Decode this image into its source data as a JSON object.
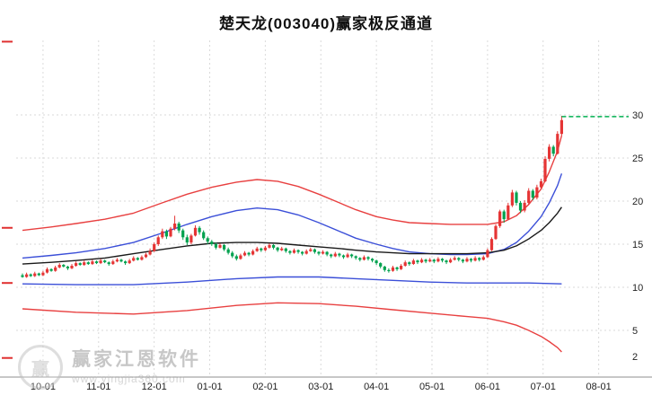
{
  "window": {
    "title": "楚天龙(003040)赢家极反通道"
  },
  "watermark": {
    "brand": "赢家江恩软件",
    "url": "www.yingjia360.com",
    "logo_text": "赢"
  },
  "chart_data": {
    "type": "candlestick",
    "title": "楚天龙(003040)赢家极反通道",
    "legend_position": "none",
    "grid": true,
    "y_axis": {
      "side": "right",
      "ylim": [
        0,
        38
      ],
      "grid_levels": [
        30,
        25,
        20,
        15,
        10,
        5
      ],
      "tick_labels": [
        30,
        25,
        20,
        15,
        10,
        5,
        2
      ]
    },
    "x_axis": {
      "ticks": [
        {
          "label": "10-01",
          "i": 5
        },
        {
          "label": "11-01",
          "i": 18.5
        },
        {
          "label": "12-01",
          "i": 32
        },
        {
          "label": "01-01",
          "i": 45.5
        },
        {
          "label": "02-01",
          "i": 59
        },
        {
          "label": "03-01",
          "i": 72.5
        },
        {
          "label": "04-01",
          "i": 86
        },
        {
          "label": "05-01",
          "i": 99.5
        },
        {
          "label": "06-01",
          "i": 113
        },
        {
          "label": "07-01",
          "i": 126.5
        },
        {
          "label": "08-01",
          "i": 140
        }
      ]
    },
    "left_marks": [
      38.5,
      16.9,
      10.5,
      1.8
    ],
    "colors": {
      "up": "#e53535",
      "down": "#00a14e",
      "band_red": "#e84040",
      "band_blue": "#3b4fd8",
      "band_black": "#1a1a1a",
      "ceiling": "#00b050",
      "grid": "#dadada"
    },
    "candles": [
      [
        11.4,
        11.6,
        11.1,
        11.2
      ],
      [
        11.2,
        11.7,
        11.1,
        11.5
      ],
      [
        11.5,
        11.6,
        11.2,
        11.3
      ],
      [
        11.3,
        11.8,
        11.2,
        11.6
      ],
      [
        11.6,
        11.7,
        11.3,
        11.4
      ],
      [
        11.4,
        11.9,
        11.3,
        11.7
      ],
      [
        11.7,
        12.3,
        11.6,
        12.1
      ],
      [
        12.1,
        12.2,
        11.8,
        11.9
      ],
      [
        11.9,
        12.5,
        11.8,
        12.3
      ],
      [
        12.3,
        12.8,
        12.2,
        12.6
      ],
      [
        12.6,
        12.7,
        12.3,
        12.4
      ],
      [
        12.4,
        12.5,
        12.0,
        12.2
      ],
      [
        12.2,
        12.7,
        12.1,
        12.5
      ],
      [
        12.5,
        13.0,
        12.4,
        12.8
      ],
      [
        12.8,
        12.9,
        12.5,
        12.6
      ],
      [
        12.6,
        13.1,
        12.5,
        12.9
      ],
      [
        12.9,
        13.0,
        12.6,
        12.7
      ],
      [
        12.7,
        13.2,
        12.6,
        13.0
      ],
      [
        13.0,
        13.1,
        12.7,
        12.8
      ],
      [
        12.8,
        13.3,
        12.7,
        13.1
      ],
      [
        13.1,
        13.2,
        12.8,
        12.9
      ],
      [
        12.9,
        13.0,
        12.5,
        12.7
      ],
      [
        12.7,
        13.2,
        12.6,
        13.0
      ],
      [
        13.0,
        13.4,
        12.9,
        13.2
      ],
      [
        13.2,
        13.3,
        12.9,
        13.0
      ],
      [
        13.0,
        13.1,
        12.6,
        12.8
      ],
      [
        12.8,
        13.3,
        12.7,
        13.1
      ],
      [
        13.1,
        13.6,
        13.0,
        13.4
      ],
      [
        13.4,
        13.5,
        13.1,
        13.2
      ],
      [
        13.2,
        13.7,
        13.1,
        13.5
      ],
      [
        13.5,
        14.0,
        13.4,
        13.8
      ],
      [
        13.8,
        14.5,
        13.7,
        14.2
      ],
      [
        14.2,
        15.2,
        14.1,
        15.0
      ],
      [
        15.0,
        16.0,
        14.8,
        15.8
      ],
      [
        15.8,
        16.8,
        15.6,
        16.5
      ],
      [
        16.5,
        16.7,
        15.6,
        15.9
      ],
      [
        15.9,
        17.0,
        15.8,
        16.8
      ],
      [
        16.8,
        18.3,
        16.6,
        17.4
      ],
      [
        17.4,
        17.6,
        16.3,
        16.6
      ],
      [
        16.6,
        16.8,
        15.5,
        15.8
      ],
      [
        15.8,
        16.1,
        14.9,
        15.2
      ],
      [
        15.2,
        16.2,
        15.0,
        16.0
      ],
      [
        16.0,
        17.2,
        15.9,
        16.9
      ],
      [
        16.9,
        17.1,
        16.1,
        16.4
      ],
      [
        16.4,
        16.6,
        15.5,
        15.7
      ],
      [
        15.7,
        15.9,
        15.0,
        15.3
      ],
      [
        15.3,
        15.5,
        14.8,
        15.0
      ],
      [
        15.0,
        15.2,
        14.4,
        14.6
      ],
      [
        14.6,
        15.1,
        14.5,
        14.9
      ],
      [
        14.9,
        15.0,
        14.2,
        14.4
      ],
      [
        14.4,
        14.6,
        13.8,
        14.0
      ],
      [
        14.0,
        14.2,
        13.4,
        13.6
      ],
      [
        13.6,
        13.8,
        13.1,
        13.3
      ],
      [
        13.3,
        13.9,
        13.2,
        13.7
      ],
      [
        13.7,
        14.2,
        13.6,
        14.0
      ],
      [
        14.0,
        14.1,
        13.6,
        13.8
      ],
      [
        13.8,
        14.4,
        13.7,
        14.2
      ],
      [
        14.2,
        14.7,
        14.1,
        14.5
      ],
      [
        14.5,
        14.6,
        14.1,
        14.3
      ],
      [
        14.3,
        14.8,
        14.2,
        14.6
      ],
      [
        14.6,
        15.1,
        14.5,
        14.9
      ],
      [
        14.9,
        15.0,
        14.4,
        14.6
      ],
      [
        14.6,
        14.7,
        14.1,
        14.3
      ],
      [
        14.3,
        14.7,
        14.2,
        14.5
      ],
      [
        14.5,
        14.6,
        14.0,
        14.2
      ],
      [
        14.2,
        14.3,
        13.8,
        14.0
      ],
      [
        14.0,
        14.5,
        13.9,
        14.3
      ],
      [
        14.3,
        14.4,
        13.9,
        14.1
      ],
      [
        14.1,
        14.2,
        13.7,
        13.9
      ],
      [
        13.9,
        14.4,
        13.8,
        14.2
      ],
      [
        14.2,
        14.6,
        14.1,
        14.4
      ],
      [
        14.4,
        14.5,
        13.9,
        14.1
      ],
      [
        14.1,
        14.2,
        13.7,
        13.9
      ],
      [
        13.9,
        14.3,
        13.8,
        14.1
      ],
      [
        14.1,
        14.2,
        13.6,
        13.8
      ],
      [
        13.8,
        13.9,
        13.4,
        13.6
      ],
      [
        13.6,
        14.1,
        13.5,
        13.9
      ],
      [
        13.9,
        14.0,
        13.5,
        13.7
      ],
      [
        13.7,
        13.8,
        13.3,
        13.5
      ],
      [
        13.5,
        14.0,
        13.4,
        13.8
      ],
      [
        13.8,
        13.9,
        13.4,
        13.6
      ],
      [
        13.6,
        13.7,
        13.2,
        13.4
      ],
      [
        13.4,
        13.5,
        13.0,
        13.2
      ],
      [
        13.2,
        13.7,
        13.1,
        13.5
      ],
      [
        13.5,
        13.6,
        13.1,
        13.3
      ],
      [
        13.3,
        13.4,
        12.9,
        13.1
      ],
      [
        13.1,
        13.2,
        12.6,
        12.8
      ],
      [
        12.8,
        12.9,
        12.2,
        12.4
      ],
      [
        12.4,
        12.5,
        11.8,
        12.0
      ],
      [
        12.0,
        12.2,
        11.7,
        11.9
      ],
      [
        11.9,
        12.5,
        11.8,
        12.3
      ],
      [
        12.3,
        12.4,
        11.9,
        12.1
      ],
      [
        12.1,
        12.7,
        12.0,
        12.5
      ],
      [
        12.5,
        13.1,
        12.4,
        12.9
      ],
      [
        12.9,
        13.0,
        12.5,
        12.7
      ],
      [
        12.7,
        13.3,
        12.6,
        13.1
      ],
      [
        13.1,
        13.2,
        12.7,
        12.9
      ],
      [
        12.9,
        13.4,
        12.8,
        13.2
      ],
      [
        13.2,
        13.3,
        12.8,
        13.0
      ],
      [
        13.0,
        13.4,
        12.9,
        13.2
      ],
      [
        13.2,
        13.3,
        12.8,
        13.0
      ],
      [
        13.0,
        13.5,
        12.9,
        13.3
      ],
      [
        13.3,
        13.4,
        12.9,
        13.1
      ],
      [
        13.1,
        13.2,
        12.7,
        12.9
      ],
      [
        12.9,
        13.4,
        12.8,
        13.2
      ],
      [
        13.2,
        13.6,
        13.1,
        13.4
      ],
      [
        13.4,
        13.5,
        13.0,
        13.2
      ],
      [
        13.2,
        13.3,
        12.8,
        13.0
      ],
      [
        13.0,
        13.5,
        12.9,
        13.3
      ],
      [
        13.3,
        13.4,
        12.9,
        13.1
      ],
      [
        13.1,
        13.6,
        13.0,
        13.4
      ],
      [
        13.4,
        13.5,
        13.0,
        13.2
      ],
      [
        13.2,
        13.7,
        13.1,
        13.5
      ],
      [
        13.5,
        14.5,
        13.4,
        14.3
      ],
      [
        14.3,
        15.8,
        14.2,
        15.6
      ],
      [
        15.6,
        17.3,
        15.5,
        17.1
      ],
      [
        17.1,
        19.0,
        16.9,
        18.8
      ],
      [
        18.8,
        19.0,
        17.5,
        17.9
      ],
      [
        17.9,
        19.8,
        17.8,
        19.5
      ],
      [
        19.5,
        21.3,
        19.3,
        21.0
      ],
      [
        21.0,
        21.2,
        19.5,
        19.8
      ],
      [
        19.8,
        20.0,
        18.6,
        18.9
      ],
      [
        18.9,
        20.1,
        18.7,
        19.8
      ],
      [
        19.8,
        21.5,
        19.6,
        21.2
      ],
      [
        21.2,
        21.4,
        20.1,
        20.4
      ],
      [
        20.4,
        21.9,
        20.2,
        21.6
      ],
      [
        21.6,
        22.6,
        21.4,
        22.3
      ],
      [
        22.3,
        25.2,
        22.2,
        24.9
      ],
      [
        24.9,
        26.6,
        24.6,
        26.3
      ],
      [
        26.3,
        26.5,
        25.2,
        25.5
      ],
      [
        25.5,
        28.1,
        25.4,
        27.8
      ],
      [
        27.8,
        29.9,
        27.6,
        29.4
      ]
    ],
    "bands": [
      {
        "name": "upper-rail-red",
        "color": "#e84040",
        "points": [
          [
            0,
            16.6
          ],
          [
            7,
            17.0
          ],
          [
            13,
            17.4
          ],
          [
            20,
            17.9
          ],
          [
            27,
            18.6
          ],
          [
            34,
            19.8
          ],
          [
            40,
            20.8
          ],
          [
            46,
            21.6
          ],
          [
            52,
            22.2
          ],
          [
            57,
            22.5
          ],
          [
            62,
            22.3
          ],
          [
            67,
            21.7
          ],
          [
            72,
            20.8
          ],
          [
            77,
            19.8
          ],
          [
            81,
            19.0
          ],
          [
            86,
            18.2
          ],
          [
            90,
            17.8
          ],
          [
            94,
            17.5
          ],
          [
            99,
            17.4
          ],
          [
            104,
            17.3
          ],
          [
            108,
            17.3
          ],
          [
            113,
            17.3
          ],
          [
            117,
            17.6
          ],
          [
            120,
            18.3
          ],
          [
            123,
            19.6
          ],
          [
            126,
            21.4
          ],
          [
            128,
            23.4
          ],
          [
            130,
            25.8
          ],
          [
            131,
            27.6
          ]
        ]
      },
      {
        "name": "upper-mid-blue",
        "color": "#3b4fd8",
        "points": [
          [
            0,
            13.4
          ],
          [
            7,
            13.7
          ],
          [
            13,
            14.0
          ],
          [
            20,
            14.5
          ],
          [
            27,
            15.2
          ],
          [
            34,
            16.3
          ],
          [
            40,
            17.3
          ],
          [
            46,
            18.2
          ],
          [
            52,
            18.9
          ],
          [
            57,
            19.2
          ],
          [
            62,
            19.0
          ],
          [
            67,
            18.4
          ],
          [
            72,
            17.5
          ],
          [
            77,
            16.5
          ],
          [
            81,
            15.7
          ],
          [
            86,
            15.0
          ],
          [
            90,
            14.5
          ],
          [
            94,
            14.1
          ],
          [
            99,
            13.9
          ],
          [
            104,
            13.8
          ],
          [
            108,
            13.8
          ],
          [
            113,
            13.9
          ],
          [
            117,
            14.4
          ],
          [
            120,
            15.2
          ],
          [
            123,
            16.5
          ],
          [
            126,
            18.2
          ],
          [
            128,
            19.8
          ],
          [
            130,
            21.8
          ],
          [
            131,
            23.2
          ]
        ]
      },
      {
        "name": "life-line-black",
        "color": "#1a1a1a",
        "points": [
          [
            0,
            12.7
          ],
          [
            7,
            12.9
          ],
          [
            13,
            13.1
          ],
          [
            20,
            13.4
          ],
          [
            27,
            13.9
          ],
          [
            34,
            14.4
          ],
          [
            40,
            14.8
          ],
          [
            46,
            15.1
          ],
          [
            52,
            15.2
          ],
          [
            57,
            15.2
          ],
          [
            62,
            15.1
          ],
          [
            67,
            14.9
          ],
          [
            72,
            14.7
          ],
          [
            77,
            14.5
          ],
          [
            81,
            14.3
          ],
          [
            86,
            14.1
          ],
          [
            90,
            14.0
          ],
          [
            94,
            13.9
          ],
          [
            99,
            13.9
          ],
          [
            104,
            13.9
          ],
          [
            108,
            13.9
          ],
          [
            113,
            14.0
          ],
          [
            117,
            14.3
          ],
          [
            120,
            14.8
          ],
          [
            123,
            15.6
          ],
          [
            126,
            16.6
          ],
          [
            128,
            17.5
          ],
          [
            130,
            18.6
          ],
          [
            131,
            19.3
          ]
        ]
      },
      {
        "name": "lower-mid-blue",
        "color": "#3b4fd8",
        "points": [
          [
            0,
            10.4
          ],
          [
            13,
            10.3
          ],
          [
            27,
            10.3
          ],
          [
            40,
            10.6
          ],
          [
            52,
            11.0
          ],
          [
            62,
            11.2
          ],
          [
            72,
            11.2
          ],
          [
            81,
            11.0
          ],
          [
            90,
            10.8
          ],
          [
            99,
            10.6
          ],
          [
            108,
            10.5
          ],
          [
            117,
            10.5
          ],
          [
            123,
            10.5
          ],
          [
            131,
            10.4
          ]
        ]
      },
      {
        "name": "lower-rail-red",
        "color": "#e84040",
        "points": [
          [
            0,
            7.5
          ],
          [
            13,
            7.1
          ],
          [
            27,
            6.9
          ],
          [
            40,
            7.3
          ],
          [
            52,
            7.9
          ],
          [
            62,
            8.2
          ],
          [
            72,
            8.1
          ],
          [
            81,
            7.8
          ],
          [
            90,
            7.4
          ],
          [
            99,
            7.0
          ],
          [
            108,
            6.6
          ],
          [
            113,
            6.4
          ],
          [
            117,
            6.0
          ],
          [
            120,
            5.6
          ],
          [
            123,
            5.0
          ],
          [
            126,
            4.3
          ],
          [
            128,
            3.7
          ],
          [
            130,
            3.0
          ],
          [
            131,
            2.5
          ]
        ]
      }
    ],
    "ceiling_line": {
      "value": 29.8,
      "from_index": 131,
      "style": "dashed"
    }
  }
}
